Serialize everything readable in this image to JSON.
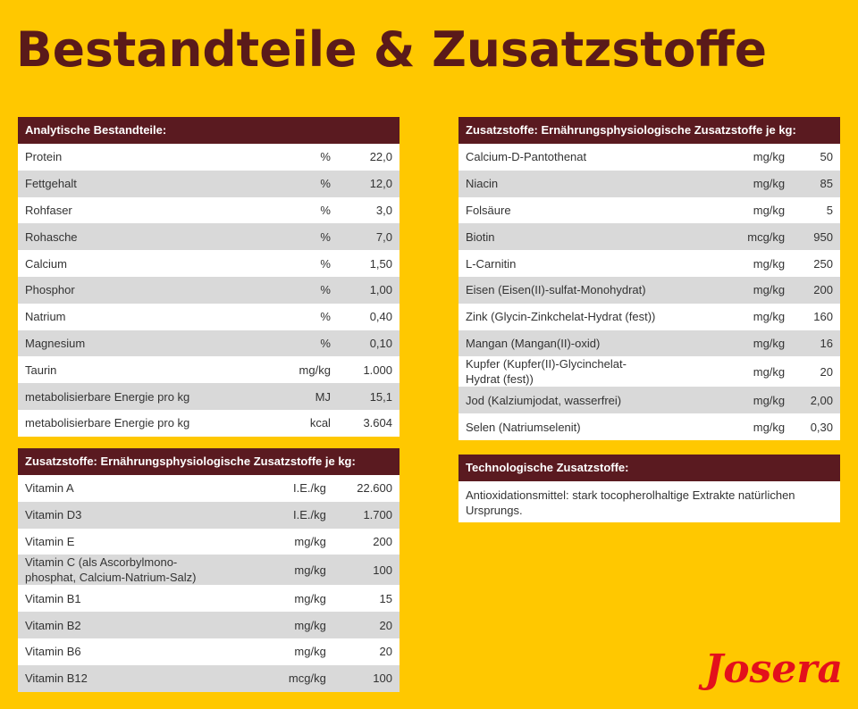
{
  "header": {
    "title": "Bestandteile & Zusatzstoffe"
  },
  "tables": [
    {
      "title": "Analytische Bestandteile:",
      "rows": [
        [
          "Protein",
          "%",
          "22,0"
        ],
        [
          "Fettgehalt",
          "%",
          "12,0"
        ],
        [
          "Rohfaser",
          "%",
          "3,0"
        ],
        [
          "Rohasche",
          "%",
          "7,0"
        ],
        [
          "Calcium",
          "%",
          "1,50"
        ],
        [
          "Phosphor",
          "%",
          "1,00"
        ],
        [
          "Natrium",
          "%",
          "0,40"
        ],
        [
          "Magnesium",
          "%",
          "0,10"
        ],
        [
          "Taurin",
          "mg/kg",
          "1.000"
        ],
        [
          "metabolisierbare Energie pro kg",
          "MJ",
          "15,1"
        ],
        [
          "metabolisierbare Energie pro kg",
          "kcal",
          "3.604"
        ]
      ]
    },
    {
      "title": "Zusatzstoffe: Ernährungsphysiologische Zusatzstoffe je kg:",
      "rows": [
        [
          "Vitamin A",
          "I.E./kg",
          "22.600"
        ],
        [
          "Vitamin D3",
          "I.E./kg",
          "1.700"
        ],
        [
          "Vitamin E",
          "mg/kg",
          "200"
        ],
        [
          "Vitamin C (als Ascorbylmono-\nphosphat, Calcium-Natrium-Salz)",
          "mg/kg",
          "100"
        ],
        [
          "Vitamin B1",
          "mg/kg",
          "15"
        ],
        [
          "Vitamin B2",
          "mg/kg",
          "20"
        ],
        [
          "Vitamin B6",
          "mg/kg",
          "20"
        ],
        [
          "Vitamin B12",
          "mcg/kg",
          "100"
        ]
      ]
    },
    {
      "title": "Zusatzstoffe: Ernährungsphysiologische Zusatzstoffe je kg:",
      "rows": [
        [
          "Calcium-D-Pantothenat",
          "mg/kg",
          "50"
        ],
        [
          "Niacin",
          "mg/kg",
          "85"
        ],
        [
          "Folsäure",
          "mg/kg",
          "5"
        ],
        [
          "Biotin",
          "mcg/kg",
          "950"
        ],
        [
          "L-Carnitin",
          "mg/kg",
          "250"
        ],
        [
          "Eisen (Eisen(II)-sulfat-Monohydrat)",
          "mg/kg",
          "200"
        ],
        [
          "Zink (Glycin-Zinkchelat-Hydrat (fest))",
          "mg/kg",
          "160"
        ],
        [
          "Mangan (Mangan(II)-oxid)",
          "mg/kg",
          "16"
        ],
        [
          "Kupfer (Kupfer(II)-Glycinchelat-\nHydrat (fest))",
          "mg/kg",
          "20"
        ],
        [
          "Jod (Kalziumjodat, wasserfrei)",
          "mg/kg",
          "2,00"
        ],
        [
          "Selen (Natriumselenit)",
          "mg/kg",
          "0,30"
        ]
      ]
    }
  ],
  "text_block": {
    "title": "Technologische Zusatzstoffe:",
    "text": "Antioxidationsmittel: stark tocopherolhaltige Extrakte natürlichen Ursprungs."
  },
  "logo": {
    "text": "Josera"
  }
}
